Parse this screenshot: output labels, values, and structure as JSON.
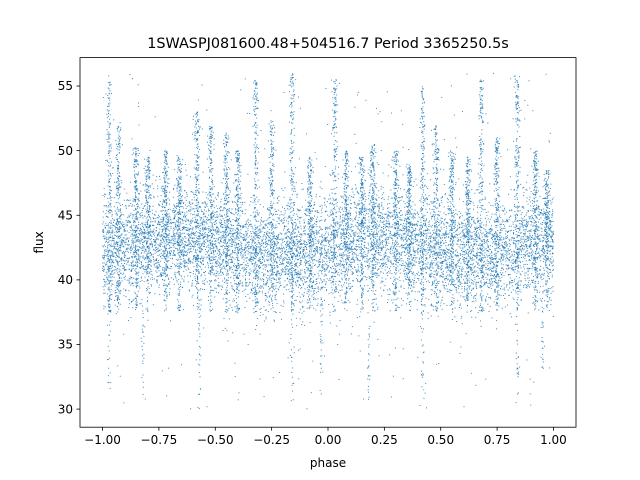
{
  "chart_data": {
    "type": "scatter",
    "title": "1SWASPJ081600.48+504516.7 Period 3365250.5s",
    "xlabel": "phase",
    "ylabel": "flux",
    "xlim": [
      -1.1,
      1.1
    ],
    "ylim": [
      28.6,
      57.2
    ],
    "x_ticks": [
      -1.0,
      -0.75,
      -0.5,
      -0.25,
      0.0,
      0.25,
      0.5,
      0.75,
      1.0
    ],
    "x_tick_labels": [
      "−1.00",
      "−0.75",
      "−0.50",
      "−0.25",
      "0.00",
      "0.25",
      "0.50",
      "0.75",
      "1.00"
    ],
    "y_ticks": [
      30,
      35,
      40,
      45,
      50,
      55
    ],
    "y_tick_labels": [
      "30",
      "35",
      "40",
      "45",
      "50",
      "55"
    ],
    "grid": false,
    "legend": "none",
    "marker_color": "#1f77b4",
    "series": [
      {
        "baseline_median": 42.5,
        "baseline_low": 38.5,
        "baseline_high": 46.5,
        "flare_max": 56,
        "dip_min": 30,
        "phase_range": [
          -1.0,
          1.0
        ],
        "flares": [
          {
            "phase": -0.97,
            "peak": 55.5
          },
          {
            "phase": -0.93,
            "peak": 52.0
          },
          {
            "phase": -0.85,
            "peak": 50.5
          },
          {
            "phase": -0.8,
            "peak": 49.5
          },
          {
            "phase": -0.72,
            "peak": 50.0
          },
          {
            "phase": -0.66,
            "peak": 49.5
          },
          {
            "phase": -0.58,
            "peak": 53.0
          },
          {
            "phase": -0.52,
            "peak": 52.0
          },
          {
            "phase": -0.45,
            "peak": 51.5
          },
          {
            "phase": -0.4,
            "peak": 50.0
          },
          {
            "phase": -0.32,
            "peak": 55.5
          },
          {
            "phase": -0.25,
            "peak": 52.5
          },
          {
            "phase": -0.16,
            "peak": 56.0
          },
          {
            "phase": -0.08,
            "peak": 49.5
          },
          {
            "phase": 0.03,
            "peak": 55.5
          },
          {
            "phase": 0.08,
            "peak": 50.0
          },
          {
            "phase": 0.15,
            "peak": 49.5
          },
          {
            "phase": 0.2,
            "peak": 50.5
          },
          {
            "phase": 0.3,
            "peak": 50.0
          },
          {
            "phase": 0.36,
            "peak": 49.0
          },
          {
            "phase": 0.42,
            "peak": 55.0
          },
          {
            "phase": 0.48,
            "peak": 52.0
          },
          {
            "phase": 0.55,
            "peak": 50.0
          },
          {
            "phase": 0.62,
            "peak": 49.5
          },
          {
            "phase": 0.68,
            "peak": 55.5
          },
          {
            "phase": 0.75,
            "peak": 51.0
          },
          {
            "phase": 0.84,
            "peak": 56.0
          },
          {
            "phase": 0.92,
            "peak": 50.0
          },
          {
            "phase": 0.97,
            "peak": 48.5
          }
        ],
        "dips": [
          {
            "phase": -0.97,
            "low": 31.5
          },
          {
            "phase": -0.82,
            "low": 30.5
          },
          {
            "phase": -0.57,
            "low": 31.0
          },
          {
            "phase": -0.16,
            "low": 30.5
          },
          {
            "phase": -0.03,
            "low": 32.8
          },
          {
            "phase": 0.18,
            "low": 30.5
          },
          {
            "phase": 0.42,
            "low": 30.5
          },
          {
            "phase": 0.84,
            "low": 30.5
          },
          {
            "phase": 0.95,
            "low": 33.0
          }
        ]
      }
    ]
  }
}
